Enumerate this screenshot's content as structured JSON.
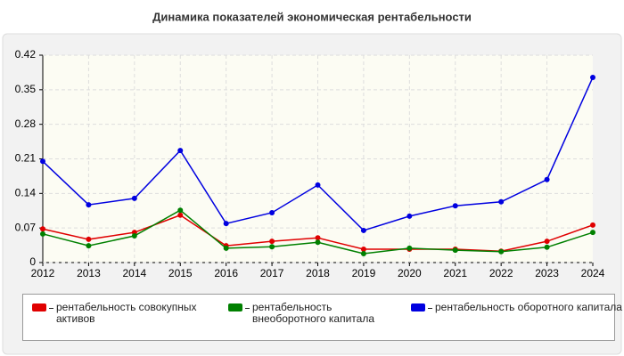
{
  "chart_data": {
    "type": "line",
    "title": "Динамика показателей экономическая рентабельности",
    "categories": [
      "2012",
      "2013",
      "2014",
      "2015",
      "2016",
      "2017",
      "2018",
      "2019",
      "2020",
      "2021",
      "2022",
      "2023",
      "2024"
    ],
    "series": [
      {
        "name": "рентабельность совокупных активов",
        "color": "#e00000",
        "values": [
          0.068,
          0.047,
          0.061,
          0.096,
          0.034,
          0.043,
          0.05,
          0.027,
          0.027,
          0.027,
          0.023,
          0.043,
          0.076
        ]
      },
      {
        "name": "рентабельность внеоборотного капитала",
        "color": "#008000",
        "values": [
          0.058,
          0.034,
          0.054,
          0.106,
          0.029,
          0.032,
          0.041,
          0.018,
          0.029,
          0.025,
          0.022,
          0.031,
          0.061
        ]
      },
      {
        "name": "рентабельность оборотного капитала",
        "color": "#0000e0",
        "values": [
          0.205,
          0.117,
          0.13,
          0.227,
          0.079,
          0.101,
          0.157,
          0.065,
          0.094,
          0.115,
          0.123,
          0.168,
          0.375
        ]
      }
    ],
    "ylim": [
      0,
      0.42
    ],
    "yticks": [
      0,
      0.07,
      0.14,
      0.21,
      0.28,
      0.35,
      0.42
    ],
    "grid": true
  }
}
